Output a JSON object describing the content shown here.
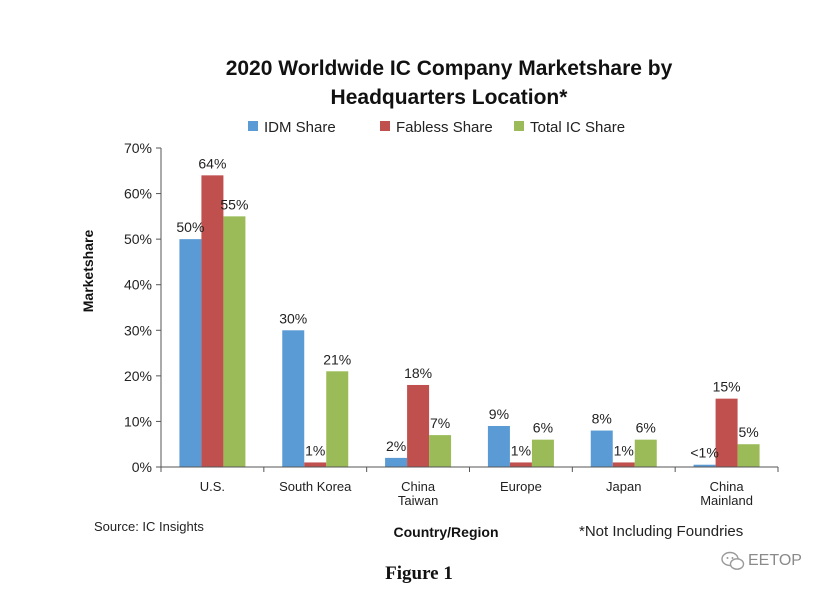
{
  "chart_data": {
    "type": "bar",
    "title_lines": [
      "2020 Worldwide IC Company Marketshare by",
      "Headquarters Location*"
    ],
    "categories": [
      [
        "U.S."
      ],
      [
        "South Korea"
      ],
      [
        "China",
        "Taiwan"
      ],
      [
        "Europe"
      ],
      [
        "Japan"
      ],
      [
        "China",
        "Mainland"
      ]
    ],
    "series": [
      {
        "name": "IDM Share",
        "color": "#5b9bd5",
        "values": [
          50,
          30,
          2,
          9,
          8,
          0.5
        ],
        "labels": [
          "50%",
          "30%",
          "2%",
          "9%",
          "8%",
          "<1%"
        ]
      },
      {
        "name": "Fabless Share",
        "color": "#c0504d",
        "values": [
          64,
          1,
          18,
          1,
          1,
          15
        ],
        "labels": [
          "64%",
          "1%",
          "18%",
          "1%",
          "1%",
          "15%"
        ]
      },
      {
        "name": "Total IC Share",
        "color": "#9bbb59",
        "values": [
          55,
          21,
          7,
          6,
          6,
          5
        ],
        "labels": [
          "55%",
          "21%",
          "7%",
          "6%",
          "6%",
          "5%"
        ]
      }
    ],
    "ylim": [
      0,
      70
    ],
    "yticks": [
      0,
      10,
      20,
      30,
      40,
      50,
      60,
      70
    ],
    "ytick_labels": [
      "0%",
      "10%",
      "20%",
      "30%",
      "40%",
      "50%",
      "60%",
      "70%"
    ],
    "ylabel": "Marketshare",
    "xlabel": "Country/Region",
    "legend_position": "top",
    "grid": false
  },
  "source_note": "Source: IC Insights",
  "footnote": "*Not Including Foundries",
  "figure_caption": "Figure 1",
  "watermark": {
    "text": "EETOP",
    "icon": "wechat-icon"
  }
}
